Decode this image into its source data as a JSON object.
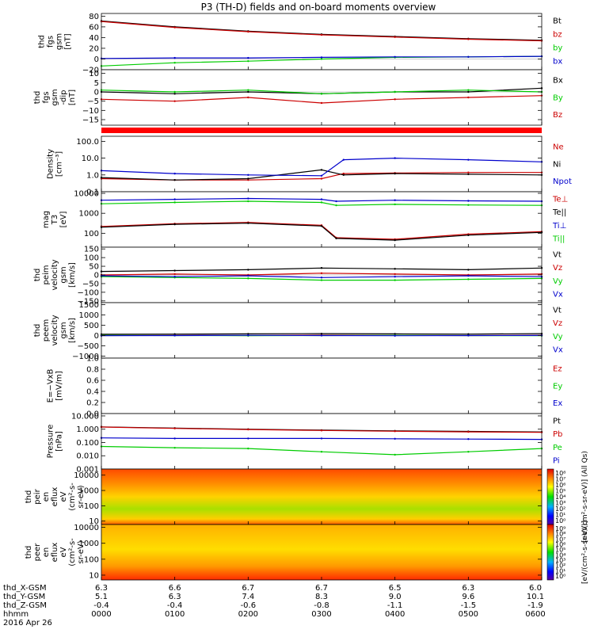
{
  "title": "P3 (TH-D) fields and on-board moments overview",
  "chart_data": {
    "type": "line",
    "x_label": "hhmm",
    "date": "2016 Apr 26",
    "time_ticks": [
      "0000",
      "0100",
      "0200",
      "0300",
      "0400",
      "0500",
      "0600"
    ],
    "orbit_rows": [
      {
        "label": "thd_X-GSM",
        "values": [
          "6.3",
          "6.6",
          "6.7",
          "6.7",
          "6.5",
          "6.3",
          "6.0"
        ]
      },
      {
        "label": "thd_Y-GSM",
        "values": [
          "5.1",
          "6.3",
          "7.4",
          "8.3",
          "9.0",
          "9.6",
          "10.1"
        ]
      },
      {
        "label": "thd_Z-GSM",
        "values": [
          "-0.4",
          "-0.4",
          "-0.6",
          "-0.8",
          "-1.1",
          "-1.5",
          "-1.9"
        ]
      }
    ],
    "panels": [
      {
        "id": "fgs-gsm",
        "type": "line",
        "ylabel": [
          "thd",
          "fgs",
          "gsm",
          "[nT]"
        ],
        "ylim": [
          -20,
          85
        ],
        "log": false,
        "ticks": [
          "80",
          "60",
          "40",
          "20",
          "0",
          "−20"
        ],
        "tick_values": [
          80,
          60,
          40,
          20,
          0,
          -20
        ],
        "series": [
          {
            "name": "Bt",
            "color": "#000000",
            "x": [
              0,
              1,
              2,
              3,
              4,
              5,
              6
            ],
            "y": [
              71,
              60,
              52,
              46,
              42,
              38,
              35
            ]
          },
          {
            "name": "bz",
            "color": "#cc0000",
            "x": [
              0,
              1,
              2,
              3,
              4,
              5,
              6
            ],
            "y": [
              70,
              59,
              51,
              45,
              41,
              37,
              34
            ]
          },
          {
            "name": "by",
            "color": "#00cc00",
            "x": [
              0,
              1,
              2,
              3,
              4,
              5,
              6
            ],
            "y": [
              -13,
              -7,
              -4,
              0,
              3,
              4,
              5
            ]
          },
          {
            "name": "bx",
            "color": "#0000cc",
            "x": [
              0,
              1,
              2,
              3,
              4,
              5,
              6
            ],
            "y": [
              1,
              2,
              2,
              3,
              4,
              4,
              5
            ]
          }
        ],
        "legend_colors": [
          "#000000",
          "#cc0000",
          "#00cc00",
          "#0000cc"
        ]
      },
      {
        "id": "fgs-dsl",
        "type": "line",
        "ylabel": [
          "thd",
          "fgs",
          "gsm",
          "-dip",
          "[nT]"
        ],
        "ylim": [
          -18,
          12
        ],
        "log": false,
        "ticks": [
          "10",
          "5",
          "0",
          "−5",
          "−10",
          "−15"
        ],
        "tick_values": [
          10,
          5,
          0,
          -5,
          -10,
          -15
        ],
        "series": [
          {
            "name": "Bx",
            "color": "#000000",
            "x": [
              0,
              1,
              2,
              3,
              4,
              5,
              6
            ],
            "y": [
              0,
              -1,
              0,
              -1,
              0,
              0,
              2
            ]
          },
          {
            "name": "By",
            "color": "#00cc00",
            "x": [
              0,
              1,
              2,
              3,
              4,
              5,
              6
            ],
            "y": [
              1,
              0,
              1,
              -1,
              0,
              1,
              0
            ]
          },
          {
            "name": "Bz",
            "color": "#cc0000",
            "x": [
              0,
              1,
              2,
              3,
              4,
              5,
              6
            ],
            "y": [
              -4,
              -5,
              -3,
              -6,
              -4,
              -3,
              -2
            ]
          }
        ],
        "legend_colors": [
          "#000000",
          "#00cc00",
          "#cc0000"
        ]
      },
      {
        "id": "density",
        "type": "line",
        "ylabel": [
          "Density",
          "[cm⁻³]"
        ],
        "ylim": [
          0.1,
          200
        ],
        "log": true,
        "ticks": [
          "100.0",
          "10.0",
          "1.0",
          "0.1"
        ],
        "tick_values": [
          100,
          10,
          1,
          0.1
        ],
        "series": [
          {
            "name": "Ne",
            "color": "#cc0000",
            "x": [
              0,
              1,
              2,
              3,
              3.3,
              4,
              5,
              6
            ],
            "y": [
              0.6,
              0.5,
              0.5,
              0.6,
              1.2,
              1.3,
              1.4,
              1.4
            ]
          },
          {
            "name": "Ni",
            "color": "#000000",
            "x": [
              0,
              1,
              2,
              3,
              3.3,
              4,
              5,
              6
            ],
            "y": [
              0.7,
              0.5,
              0.6,
              2,
              1.0,
              1.2,
              1.1,
              1.0
            ]
          },
          {
            "name": "Npot",
            "color": "#0000cc",
            "x": [
              0,
              1,
              2,
              3,
              3.3,
              4,
              5,
              6
            ],
            "y": [
              1.8,
              1.2,
              1.0,
              0.9,
              8,
              10,
              8,
              6
            ]
          }
        ],
        "legend_colors": [
          "#cc0000",
          "#000000",
          "#0000cc"
        ]
      },
      {
        "id": "temperature",
        "type": "line",
        "ylabel": [
          "mag",
          "T3",
          "[eV]"
        ],
        "ylim": [
          20,
          12000
        ],
        "log": true,
        "ticks": [
          "10000",
          "1000",
          "100"
        ],
        "tick_values": [
          10000,
          1000,
          100
        ],
        "series": [
          {
            "name": "Te⊥",
            "color": "#cc0000",
            "x": [
              0,
              1,
              2,
              3,
              3.2,
              4,
              5,
              6
            ],
            "y": [
              220,
              300,
              350,
              250,
              60,
              50,
              90,
              120
            ]
          },
          {
            "name": "Te||",
            "color": "#000000",
            "x": [
              0,
              1,
              2,
              3,
              3.2,
              4,
              5,
              6
            ],
            "y": [
              200,
              280,
              320,
              230,
              55,
              45,
              80,
              110
            ]
          },
          {
            "name": "Ti⊥",
            "color": "#0000cc",
            "x": [
              0,
              1,
              2,
              3,
              3.2,
              4,
              5,
              6
            ],
            "y": [
              4500,
              5000,
              5500,
              5000,
              4000,
              4500,
              4200,
              4000
            ]
          },
          {
            "name": "Ti||",
            "color": "#00cc00",
            "x": [
              0,
              1,
              2,
              3,
              3.2,
              4,
              5,
              6
            ],
            "y": [
              3000,
              3500,
              4000,
              3500,
              2500,
              2800,
              2600,
              2500
            ]
          }
        ],
        "legend_colors": [
          "#cc0000",
          "#000000",
          "#0000cc",
          "#00cc00"
        ]
      },
      {
        "id": "peim-velocity",
        "type": "line",
        "ylabel": [
          "thd",
          "peim",
          "velocity",
          "gsm",
          "[km/s]"
        ],
        "ylim": [
          -160,
          160
        ],
        "log": false,
        "ticks": [
          "150",
          "100",
          "50",
          "0",
          "−50",
          "−100",
          "−150"
        ],
        "tick_values": [
          150,
          100,
          50,
          0,
          -50,
          -100,
          -150
        ],
        "series": [
          {
            "name": "Vt",
            "color": "#000000",
            "x": [
              0,
              1,
              2,
              3,
              4,
              5,
              6
            ],
            "y": [
              20,
              25,
              30,
              40,
              35,
              30,
              40
            ]
          },
          {
            "name": "Vz",
            "color": "#cc0000",
            "x": [
              0,
              1,
              2,
              3,
              4,
              5,
              6
            ],
            "y": [
              0,
              5,
              0,
              10,
              5,
              0,
              5
            ]
          },
          {
            "name": "Vy",
            "color": "#00cc00",
            "x": [
              0,
              1,
              2,
              3,
              4,
              5,
              6
            ],
            "y": [
              -10,
              -15,
              -20,
              -30,
              -30,
              -25,
              -20
            ]
          },
          {
            "name": "Vx",
            "color": "#0000cc",
            "x": [
              0,
              1,
              2,
              3,
              4,
              5,
              6
            ],
            "y": [
              -5,
              -10,
              -5,
              -15,
              -10,
              -5,
              -10
            ]
          }
        ],
        "legend_colors": [
          "#000000",
          "#cc0000",
          "#00cc00",
          "#0000cc"
        ]
      },
      {
        "id": "peem-velocity",
        "type": "line",
        "ylabel": [
          "thd",
          "peem",
          "velocity",
          "gsm",
          "[km/s]"
        ],
        "ylim": [
          -1100,
          1600
        ],
        "log": false,
        "ticks": [
          "1500",
          "1000",
          "500",
          "0",
          "−500",
          "−1000"
        ],
        "tick_values": [
          1500,
          1000,
          500,
          0,
          -500,
          -1000
        ],
        "series": [
          {
            "name": "Vt",
            "color": "#000000",
            "x": [
              0,
              1,
              2,
              3,
              4,
              5,
              6
            ],
            "y": [
              60,
              70,
              80,
              90,
              80,
              70,
              90
            ]
          },
          {
            "name": "Vz",
            "color": "#cc0000",
            "x": [
              0,
              1,
              2,
              3,
              4,
              5,
              6
            ],
            "y": [
              0,
              10,
              0,
              20,
              10,
              0,
              10
            ]
          },
          {
            "name": "Vy",
            "color": "#00cc00",
            "x": [
              0,
              1,
              2,
              3,
              4,
              5,
              6
            ],
            "y": [
              10,
              0,
              -10,
              0,
              10,
              0,
              -10
            ]
          },
          {
            "name": "Vx",
            "color": "#0000cc",
            "x": [
              0,
              1,
              2,
              3,
              4,
              5,
              6
            ],
            "y": [
              -10,
              0,
              10,
              0,
              -10,
              0,
              5
            ]
          }
        ],
        "legend_colors": [
          "#000000",
          "#cc0000",
          "#00cc00",
          "#0000cc"
        ]
      },
      {
        "id": "efield",
        "type": "line",
        "ylabel": [
          "E=−VxB",
          "[mV/m]"
        ],
        "ylim": [
          0,
          1
        ],
        "log": false,
        "ticks": [
          "1.0",
          "0.8",
          "0.6",
          "0.4",
          "0.2",
          "0.0"
        ],
        "tick_values": [
          1,
          0.8,
          0.6,
          0.4,
          0.2,
          0
        ],
        "series": [
          {
            "name": "Ez",
            "color": "#cc0000",
            "x": [],
            "y": []
          },
          {
            "name": "Ey",
            "color": "#00cc00",
            "x": [],
            "y": []
          },
          {
            "name": "Ex",
            "color": "#0000cc",
            "x": [],
            "y": []
          }
        ],
        "legend_colors": [
          "#cc0000",
          "#00cc00",
          "#0000cc"
        ]
      },
      {
        "id": "pressure",
        "type": "line",
        "ylabel": [
          "Pressure",
          "[nPa]"
        ],
        "ylim": [
          0.001,
          15
        ],
        "log": true,
        "ticks": [
          "10.000",
          "1.000",
          "0.100",
          "0.010",
          "0.001"
        ],
        "tick_values": [
          10,
          1,
          0.1,
          0.01,
          0.001
        ],
        "series": [
          {
            "name": "Pt",
            "color": "#000000",
            "x": [
              0,
              1,
              2,
              3,
              4,
              5,
              6
            ],
            "y": [
              1.5,
              1.2,
              1.0,
              0.85,
              0.75,
              0.68,
              0.62
            ]
          },
          {
            "name": "Pb",
            "color": "#cc0000",
            "x": [
              0,
              1,
              2,
              3,
              4,
              5,
              6
            ],
            "y": [
              1.45,
              1.15,
              0.95,
              0.8,
              0.7,
              0.63,
              0.58
            ]
          },
          {
            "name": "Pe",
            "color": "#00cc00",
            "x": [
              0,
              1,
              2,
              3,
              4,
              5,
              6
            ],
            "y": [
              0.05,
              0.04,
              0.035,
              0.02,
              0.012,
              0.02,
              0.035
            ]
          },
          {
            "name": "Pi",
            "color": "#0000cc",
            "x": [
              0,
              1,
              2,
              3,
              4,
              5,
              6
            ],
            "y": [
              0.22,
              0.2,
              0.2,
              0.2,
              0.19,
              0.18,
              0.17
            ]
          }
        ],
        "legend_colors": [
          "#000000",
          "#cc0000",
          "#00cc00",
          "#0000cc"
        ]
      },
      {
        "id": "peir-spectrogram",
        "type": "heatmap",
        "ylabel": [
          "thd",
          "peir",
          "en",
          "eflux",
          "eV",
          "(cm²-s-",
          "sr-eV)"
        ],
        "ylim": [
          6,
          25000
        ],
        "log": true,
        "ticks": [
          "10000",
          "1000",
          "100",
          "10"
        ],
        "tick_values": [
          10000,
          1000,
          100,
          10
        ],
        "colorbar": {
          "label": "[eV/(cm²-s-sr-eV)] (All Qs)",
          "ticks": [
            "10⁸",
            "10⁷",
            "10⁶",
            "10⁵",
            "10⁴",
            "10³",
            "10²",
            "10¹",
            "10⁰"
          ]
        }
      },
      {
        "id": "peer-spectrogram",
        "type": "heatmap",
        "ylabel": [
          "thd",
          "peer",
          "en",
          "eflux",
          "eV",
          "(cm²-s-",
          "sr-eV)"
        ],
        "ylim": [
          5,
          15000
        ],
        "log": true,
        "ticks": [
          "10000",
          "1000",
          "100",
          "10"
        ],
        "tick_values": [
          10000,
          1000,
          100,
          10
        ],
        "colorbar": {
          "label": "[eV/(cm²-s-sr-eV)]",
          "ticks": [
            "10⁹",
            "10⁸",
            "10⁷",
            "10⁶",
            "10⁵",
            "10⁴",
            "10³",
            "10²",
            "10¹",
            "10⁰"
          ]
        }
      }
    ]
  }
}
